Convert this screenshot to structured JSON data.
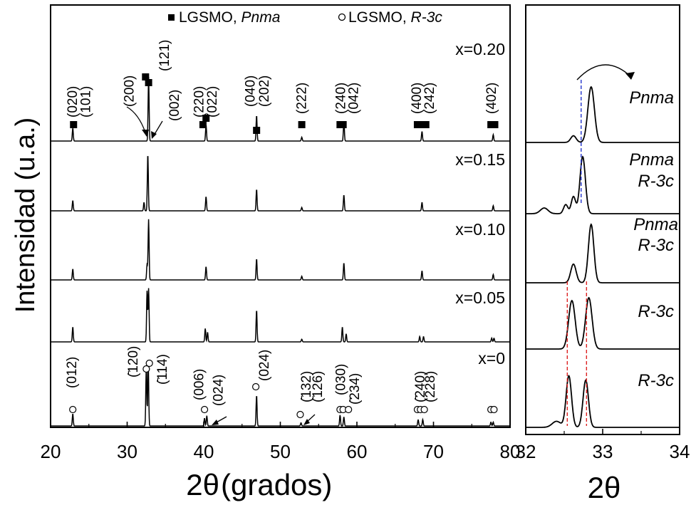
{
  "colors": {
    "trace": "#000000",
    "marker": "#000000",
    "ref_blue": "#2233cc",
    "ref_red": "#dd2222"
  },
  "chart_data": [
    {
      "type": "line",
      "ylabel": "Intensidad (u.a.)",
      "xlabel_symbol": "2θ",
      "xlabel_unit": "(grados)",
      "xlim": [
        20,
        80
      ],
      "x_ticks": [
        20,
        30,
        40,
        50,
        60,
        70
      ],
      "x_tick_labels": [
        "20",
        "30",
        "40",
        "50",
        "60",
        "70"
      ],
      "x_axis_end_label": "80",
      "legend": {
        "items": [
          {
            "marker": "filled-square",
            "label": "LGSMO, ",
            "label_italic": "Pnma"
          },
          {
            "marker": "open-circle",
            "label": "LGSMO, ",
            "label_italic": "R-3c"
          }
        ],
        "position": "top-center"
      },
      "series": [
        {
          "name": "x=0.20",
          "peaks": [
            {
              "x": 22.9,
              "h": 0.2
            },
            {
              "x": 32.8,
              "h": 1.0
            },
            {
              "x": 40.3,
              "h": 0.25
            },
            {
              "x": 46.9,
              "h": 0.4
            },
            {
              "x": 52.8,
              "h": 0.06
            },
            {
              "x": 58.3,
              "h": 0.3
            },
            {
              "x": 68.5,
              "h": 0.15
            },
            {
              "x": 77.8,
              "h": 0.1
            }
          ]
        },
        {
          "name": "x=0.15",
          "peaks": [
            {
              "x": 22.9,
              "h": 0.18
            },
            {
              "x": 32.2,
              "h": 0.15
            },
            {
              "x": 32.7,
              "h": 1.0
            },
            {
              "x": 40.3,
              "h": 0.25
            },
            {
              "x": 46.9,
              "h": 0.38
            },
            {
              "x": 52.8,
              "h": 0.06
            },
            {
              "x": 58.3,
              "h": 0.28
            },
            {
              "x": 68.5,
              "h": 0.15
            },
            {
              "x": 77.8,
              "h": 0.09
            }
          ]
        },
        {
          "name": "x=0.10",
          "peaks": [
            {
              "x": 22.9,
              "h": 0.18
            },
            {
              "x": 32.6,
              "h": 0.25
            },
            {
              "x": 32.8,
              "h": 1.0
            },
            {
              "x": 40.3,
              "h": 0.22
            },
            {
              "x": 46.9,
              "h": 0.35
            },
            {
              "x": 52.8,
              "h": 0.06
            },
            {
              "x": 58.3,
              "h": 0.28
            },
            {
              "x": 68.5,
              "h": 0.15
            },
            {
              "x": 77.8,
              "h": 0.09
            }
          ]
        },
        {
          "name": "x=0.05",
          "peaks": [
            {
              "x": 22.9,
              "h": 0.28
            },
            {
              "x": 32.6,
              "h": 0.95
            },
            {
              "x": 32.8,
              "h": 1.0
            },
            {
              "x": 40.2,
              "h": 0.25
            },
            {
              "x": 40.5,
              "h": 0.18
            },
            {
              "x": 46.9,
              "h": 0.6
            },
            {
              "x": 52.8,
              "h": 0.05
            },
            {
              "x": 58.1,
              "h": 0.28
            },
            {
              "x": 58.6,
              "h": 0.15
            },
            {
              "x": 68.2,
              "h": 0.1
            },
            {
              "x": 68.7,
              "h": 0.1
            },
            {
              "x": 77.6,
              "h": 0.07
            },
            {
              "x": 77.9,
              "h": 0.07
            }
          ]
        },
        {
          "name": "x=0",
          "peaks": [
            {
              "x": 22.9,
              "h": 0.19
            },
            {
              "x": 32.5,
              "h": 0.95
            },
            {
              "x": 32.75,
              "h": 1.0
            },
            {
              "x": 40.1,
              "h": 0.12
            },
            {
              "x": 40.4,
              "h": 0.16
            },
            {
              "x": 46.9,
              "h": 0.48
            },
            {
              "x": 52.7,
              "h": 0.05
            },
            {
              "x": 57.8,
              "h": 0.17
            },
            {
              "x": 58.3,
              "h": 0.14
            },
            {
              "x": 68.0,
              "h": 0.1
            },
            {
              "x": 68.6,
              "h": 0.1
            },
            {
              "x": 77.5,
              "h": 0.06
            },
            {
              "x": 77.8,
              "h": 0.06
            }
          ]
        }
      ],
      "pnma_marks": [
        23.0,
        32.4,
        32.8,
        39.9,
        40.3,
        46.9,
        52.8,
        57.8,
        58.2,
        67.9,
        68.5,
        69.0,
        77.5,
        78.0
      ],
      "pnma_labels": [
        {
          "text": "(020)",
          "x": 22.9
        },
        {
          "text": "(101)",
          "x": 24.6
        },
        {
          "text": "(200)",
          "x": 30.3
        },
        {
          "text": "(121)",
          "x": 34.9
        },
        {
          "text": "(002)",
          "x": 36.2
        },
        {
          "text": "(220)",
          "x": 39.4
        },
        {
          "text": "(022)",
          "x": 41.1
        },
        {
          "text": "(040)",
          "x": 46.1
        },
        {
          "text": "(202)",
          "x": 47.9
        },
        {
          "text": "(222)",
          "x": 52.8
        },
        {
          "text": "(240)",
          "x": 57.9
        },
        {
          "text": "(042)",
          "x": 59.6
        },
        {
          "text": "(400)",
          "x": 67.8
        },
        {
          "text": "(242)",
          "x": 69.5
        },
        {
          "text": "(402)",
          "x": 77.6
        }
      ],
      "r3c_marks": [
        22.9,
        32.5,
        32.9,
        40.1,
        46.8,
        52.6,
        57.8,
        58.2,
        58.9,
        67.9,
        68.3,
        68.8,
        77.5,
        77.9
      ],
      "r3c_labels": [
        {
          "text": "(012)",
          "x": 22.8
        },
        {
          "text": "(̄120)",
          "x": 30.8
        },
        {
          "text": "(̄114)",
          "x": 34.6
        },
        {
          "text": "(006)",
          "x": 39.4
        },
        {
          "text": "(024)",
          "x": 41.9
        },
        {
          "text": "(024)",
          "x": 47.9
        },
        {
          "text": "(̄132)",
          "x": 53.4
        },
        {
          "text": "(̄126)",
          "x": 54.9
        },
        {
          "text": "(030)",
          "x": 57.9
        },
        {
          "text": "(̄234)",
          "x": 59.7
        },
        {
          "text": "(̄240)",
          "x": 68.3
        },
        {
          "text": "(228)",
          "x": 69.6
        }
      ]
    },
    {
      "type": "line",
      "xlabel": "2θ",
      "xlim": [
        32,
        34
      ],
      "x_ticks": [
        32,
        33,
        34
      ],
      "x_tick_labels": [
        "32",
        "33",
        "34"
      ],
      "series": [
        {
          "label": "Pnma",
          "peaks": [
            {
              "x": 32.62,
              "h": 0.12,
              "w": 0.05
            },
            {
              "x": 32.85,
              "h": 1.0,
              "w": 0.06
            }
          ]
        },
        {
          "label": "Pnma R-3c",
          "peaks": [
            {
              "x": 32.24,
              "h": 0.1,
              "w": 0.07
            },
            {
              "x": 32.52,
              "h": 0.16,
              "w": 0.04
            },
            {
              "x": 32.62,
              "h": 0.3,
              "w": 0.04
            },
            {
              "x": 32.74,
              "h": 1.0,
              "w": 0.05
            }
          ]
        },
        {
          "label": "Pnma R-3c",
          "peaks": [
            {
              "x": 32.62,
              "h": 0.32,
              "w": 0.05
            },
            {
              "x": 32.85,
              "h": 1.0,
              "w": 0.05
            }
          ]
        },
        {
          "label": "R-3c",
          "peaks": [
            {
              "x": 32.6,
              "h": 0.85,
              "w": 0.06
            },
            {
              "x": 32.82,
              "h": 0.9,
              "w": 0.06
            }
          ]
        },
        {
          "label": "R-3c",
          "peaks": [
            {
              "x": 32.4,
              "h": 0.1,
              "w": 0.08
            },
            {
              "x": 32.56,
              "h": 0.85,
              "w": 0.05
            },
            {
              "x": 32.78,
              "h": 0.78,
              "w": 0.05
            }
          ]
        }
      ],
      "ref_lines": [
        {
          "x": 32.72,
          "color": "blue",
          "series": [
            0,
            1
          ]
        },
        {
          "x": 32.54,
          "color": "red",
          "series": [
            2,
            4
          ]
        },
        {
          "x": 32.79,
          "color": "red",
          "series": [
            2,
            4
          ]
        }
      ]
    }
  ]
}
